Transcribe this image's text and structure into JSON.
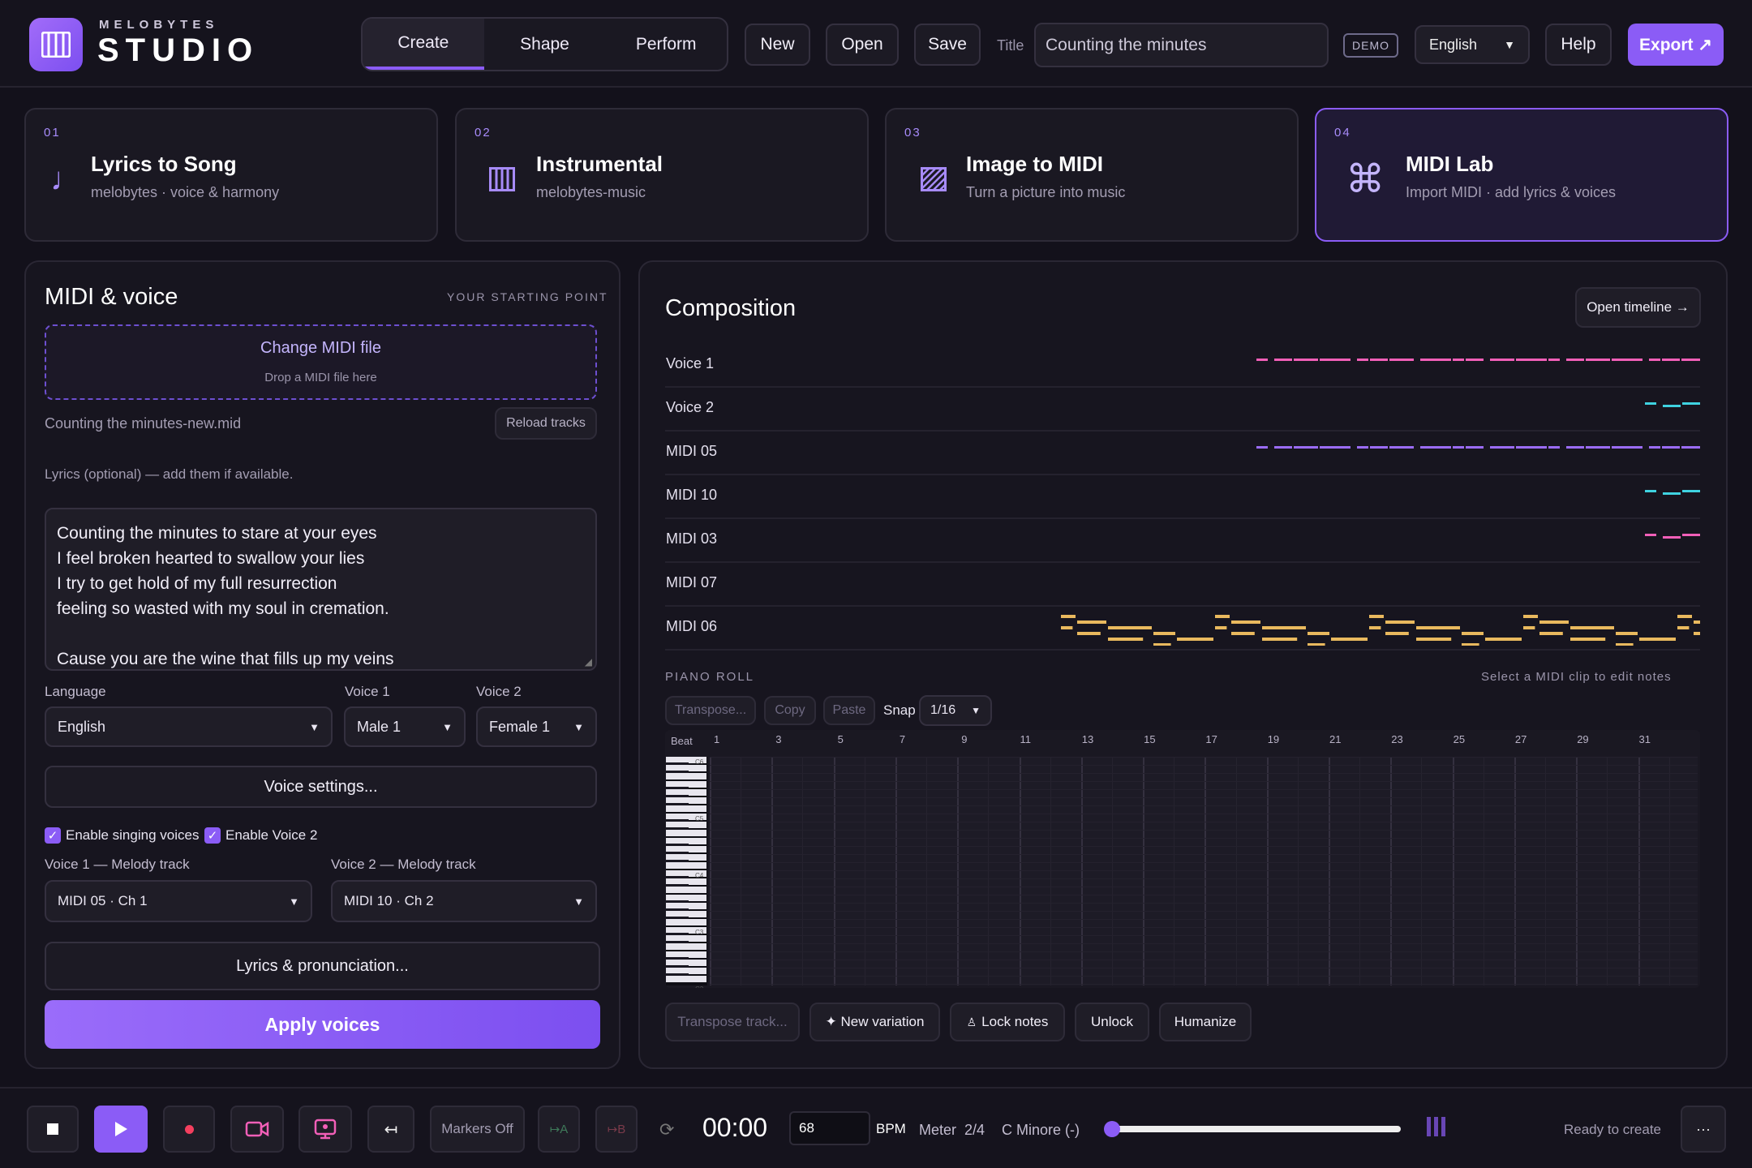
{
  "app": {
    "brand_small": "MELOBYTES",
    "brand_big": "STUDIO",
    "tabs": [
      "Create",
      "Shape",
      "Perform"
    ],
    "active_tab": "Create",
    "buttons": {
      "new": "New",
      "open": "Open",
      "save": "Save",
      "help": "Help",
      "export": "Export ↗"
    },
    "title_label": "Title",
    "title_value": "Counting the minutes",
    "demo_badge": "DEMO",
    "language": "English",
    "accent": "#8b5cf6"
  },
  "modes": [
    {
      "num": "01",
      "title": "Lyrics to Song",
      "subtitle": "melobytes · voice & harmony",
      "icon": "music-note-icon"
    },
    {
      "num": "02",
      "title": "Instrumental",
      "subtitle": "melobytes-music",
      "icon": "piano-icon"
    },
    {
      "num": "03",
      "title": "Image to MIDI",
      "subtitle": "Turn a picture into music",
      "icon": "image-icon"
    },
    {
      "num": "04",
      "title": "MIDI Lab",
      "subtitle": "Import MIDI · add lyrics & voices",
      "icon": "command-icon"
    }
  ],
  "midi_panel": {
    "title": "MIDI & voice",
    "tag": "YOUR STARTING POINT",
    "drop_title": "Change MIDI file",
    "drop_sub": "Drop a MIDI file here",
    "file_name": "Counting the minutes-new.mid",
    "reload": "Reload tracks",
    "lyrics_hint": "Lyrics (optional) — add them if available.",
    "lyrics": "Counting the minutes to stare at your eyes\nI feel broken hearted to swallow your lies\nI try to get hold of my full resurrection\nfeeling so wasted with my soul in cremation.\n\nCause you are the wine that fills up my veins",
    "language_label": "Language",
    "language_value": "English",
    "voice1_label": "Voice 1",
    "voice1_value": "Male 1",
    "voice2_label": "Voice 2",
    "voice2_value": "Female 1",
    "voice_settings": "Voice settings...",
    "enable_singing": "Enable singing voices",
    "enable_voice2": "Enable Voice 2",
    "v1_track_label": "Voice 1 — Melody track",
    "v1_track_value": "MIDI 05 · Ch 1",
    "v2_track_label": "Voice 2 — Melody track",
    "v2_track_value": "MIDI 10 · Ch 2",
    "lyrics_btn": "Lyrics & pronunciation...",
    "apply": "Apply voices"
  },
  "composition": {
    "title": "Composition",
    "open_timeline": "Open timeline →",
    "tracks": [
      {
        "name": "Voice 1",
        "color": "#f25fb8"
      },
      {
        "name": "Voice 2",
        "color": "#3fd2e0"
      },
      {
        "name": "MIDI 05",
        "color": "#9b6cf8"
      },
      {
        "name": "MIDI 10",
        "color": "#3fd2e0"
      },
      {
        "name": "MIDI 03",
        "color": "#f25fb8"
      },
      {
        "name": "MIDI 07",
        "color": "#9b6cf8"
      },
      {
        "name": "MIDI 06",
        "color": "#e9b95e"
      }
    ],
    "piano_roll_label": "PIANO ROLL",
    "piano_roll_hint": "Select a MIDI clip to edit notes",
    "transpose": "Transpose...",
    "copy": "Copy",
    "paste": "Paste",
    "snap_label": "Snap",
    "snap_value": "1/16",
    "beat_label": "Beat",
    "beats": [
      "1",
      "3",
      "5",
      "7",
      "9",
      "11",
      "13",
      "15",
      "17",
      "19",
      "21",
      "23",
      "25",
      "27",
      "29",
      "31"
    ],
    "octave_labels": [
      "C6",
      "C5",
      "C4",
      "C3",
      "C2"
    ],
    "transpose_track": "Transpose track...",
    "new_variation": "✦ New variation",
    "lock_notes": "Lock notes",
    "unlock": "Unlock",
    "humanize": "Humanize"
  },
  "transport": {
    "markers": "Markers Off",
    "loop_a": "↦A",
    "loop_b": "↦B",
    "time": "00:00",
    "bpm_value": "68",
    "bpm_label": "BPM",
    "meter": "Meter  2/4",
    "key": "C Minore (-)",
    "position": 0,
    "status": "Ready to create",
    "more": "···"
  }
}
